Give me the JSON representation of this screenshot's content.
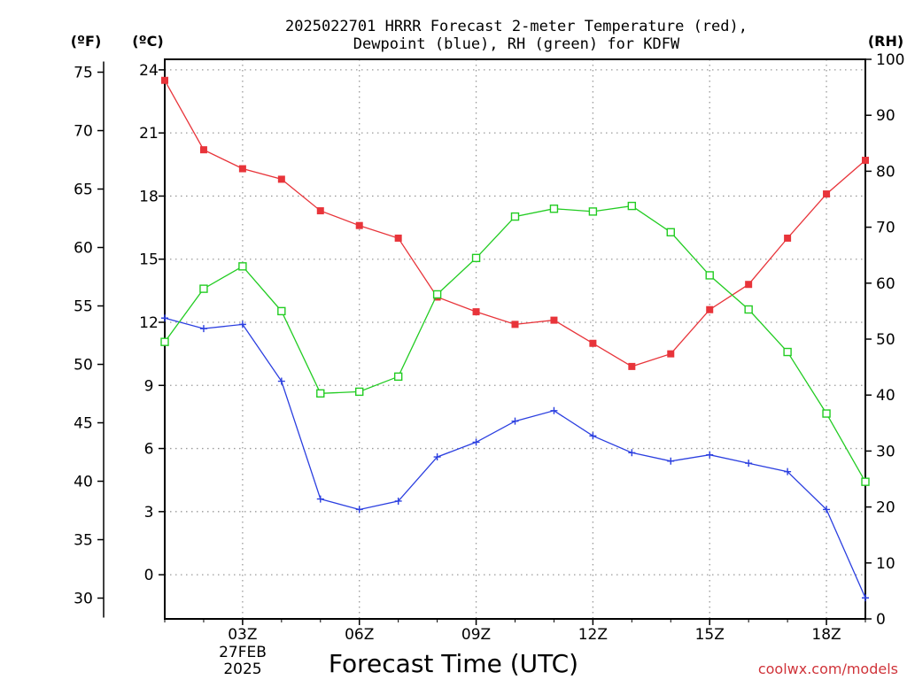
{
  "title_line1": "2025022701 HRRR Forecast 2-meter Temperature (red),",
  "title_line2": "Dewpoint (blue), RH (green) for KDFW",
  "unit_f": "(ºF)",
  "unit_c": "(ºC)",
  "unit_rh": "(RH)",
  "xlabel": "Forecast Time (UTC)",
  "credit": "coolwx.com/models",
  "date_day": "27FEB",
  "date_year": "2025",
  "colors": {
    "temperature": "#e8343a",
    "dewpoint": "#2b3fe0",
    "rh": "#22cc22",
    "grid": "#9a9a9a",
    "credit": "#d0343a"
  },
  "chart_data": {
    "type": "line",
    "x": [
      "01Z",
      "02Z",
      "03Z",
      "04Z",
      "05Z",
      "06Z",
      "07Z",
      "08Z",
      "09Z",
      "10Z",
      "11Z",
      "12Z",
      "13Z",
      "14Z",
      "15Z",
      "16Z",
      "17Z",
      "18Z",
      "19Z"
    ],
    "xticks": [
      "03Z",
      "06Z",
      "09Z",
      "12Z",
      "15Z",
      "18Z"
    ],
    "celsius_ticks": [
      "24",
      "21",
      "18",
      "15",
      "12",
      "9",
      "6",
      "3",
      "0"
    ],
    "fahrenheit_ticks": [
      "75",
      "70",
      "65",
      "60",
      "55",
      "50",
      "45",
      "40",
      "35",
      "30"
    ],
    "rh_ticks": [
      "100",
      "90",
      "80",
      "70",
      "60",
      "50",
      "40",
      "30",
      "20",
      "10",
      "0"
    ],
    "ylim_celsius": [
      -2.1,
      24.5
    ],
    "ylim_rh": [
      0,
      100
    ],
    "grid": true,
    "series": [
      {
        "name": "Temperature",
        "axis": "celsius",
        "marker": "filled-square",
        "values": [
          23.5,
          20.2,
          19.3,
          18.8,
          17.3,
          16.6,
          16.0,
          13.2,
          12.5,
          11.9,
          12.1,
          11.0,
          9.9,
          10.5,
          12.6,
          13.8,
          16.0,
          18.1,
          19.7
        ]
      },
      {
        "name": "Dewpoint",
        "axis": "celsius",
        "marker": "plus",
        "values": [
          12.2,
          11.7,
          11.9,
          9.2,
          3.6,
          3.1,
          3.5,
          5.6,
          6.3,
          7.3,
          7.8,
          6.6,
          5.8,
          5.4,
          5.7,
          5.3,
          4.9,
          3.1,
          -1.1
        ]
      },
      {
        "name": "RH",
        "axis": "rh",
        "marker": "open-square",
        "values": [
          49.5,
          59.0,
          63.0,
          55.0,
          40.3,
          40.6,
          43.3,
          58.0,
          64.5,
          71.9,
          73.3,
          72.8,
          73.8,
          69.1,
          61.4,
          55.3,
          47.7,
          36.7,
          24.5
        ]
      }
    ]
  }
}
